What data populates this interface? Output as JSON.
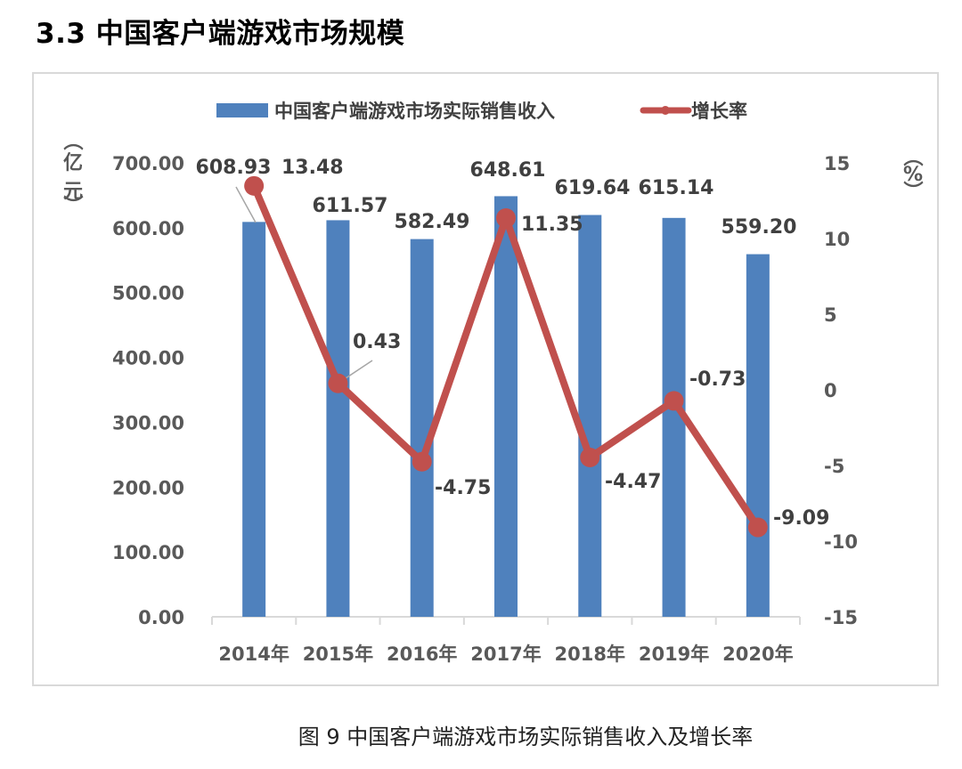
{
  "page": {
    "section_title": "3.3  中国客户端游戏市场规模",
    "caption": "图 9  中国客户端游戏市场实际销售收入及增长率"
  },
  "legend": {
    "bar_label": "中国客户端游戏市场实际销售收入",
    "line_label": "增长率"
  },
  "axes": {
    "left_unit": [
      "（",
      "亿",
      "元",
      "）"
    ],
    "right_unit": [
      "（",
      "%",
      "）"
    ],
    "left_ticks": [
      "700.00",
      "600.00",
      "500.00",
      "400.00",
      "300.00",
      "200.00",
      "100.00",
      "0.00"
    ],
    "right_ticks": [
      "15",
      "10",
      "5",
      "0",
      "-5",
      "-10",
      "-15"
    ]
  },
  "colors": {
    "bar": "#4f81bd",
    "line": "#c0504d",
    "axis_text": "#595959",
    "frame": "#d9d9d9"
  },
  "chart_data": {
    "type": "bar+line",
    "title": "中国客户端游戏市场实际销售收入及增长率",
    "categories": [
      "2014年",
      "2015年",
      "2016年",
      "2017年",
      "2018年",
      "2019年",
      "2020年"
    ],
    "series": [
      {
        "name": "中国客户端游戏市场实际销售收入",
        "type": "bar",
        "axis": "left",
        "unit": "亿元",
        "values": [
          608.93,
          611.57,
          582.49,
          648.61,
          619.64,
          615.14,
          559.2
        ],
        "labels": [
          "608.93",
          "611.57",
          "582.49",
          "648.61",
          "619.64",
          "615.14",
          "559.20"
        ]
      },
      {
        "name": "增长率",
        "type": "line",
        "axis": "right",
        "unit": "%",
        "values": [
          13.48,
          0.43,
          -4.75,
          11.35,
          -4.47,
          -0.73,
          -9.09
        ],
        "labels": [
          "13.48",
          "0.43",
          "-4.75",
          "11.35",
          "-4.47",
          "-0.73",
          "-9.09"
        ]
      }
    ],
    "ylabel_left": "（亿元）",
    "ylabel_right": "（%）",
    "ylim_left": [
      0,
      700
    ],
    "ylim_right": [
      -15,
      15
    ],
    "grid": false,
    "legend_position": "top"
  }
}
